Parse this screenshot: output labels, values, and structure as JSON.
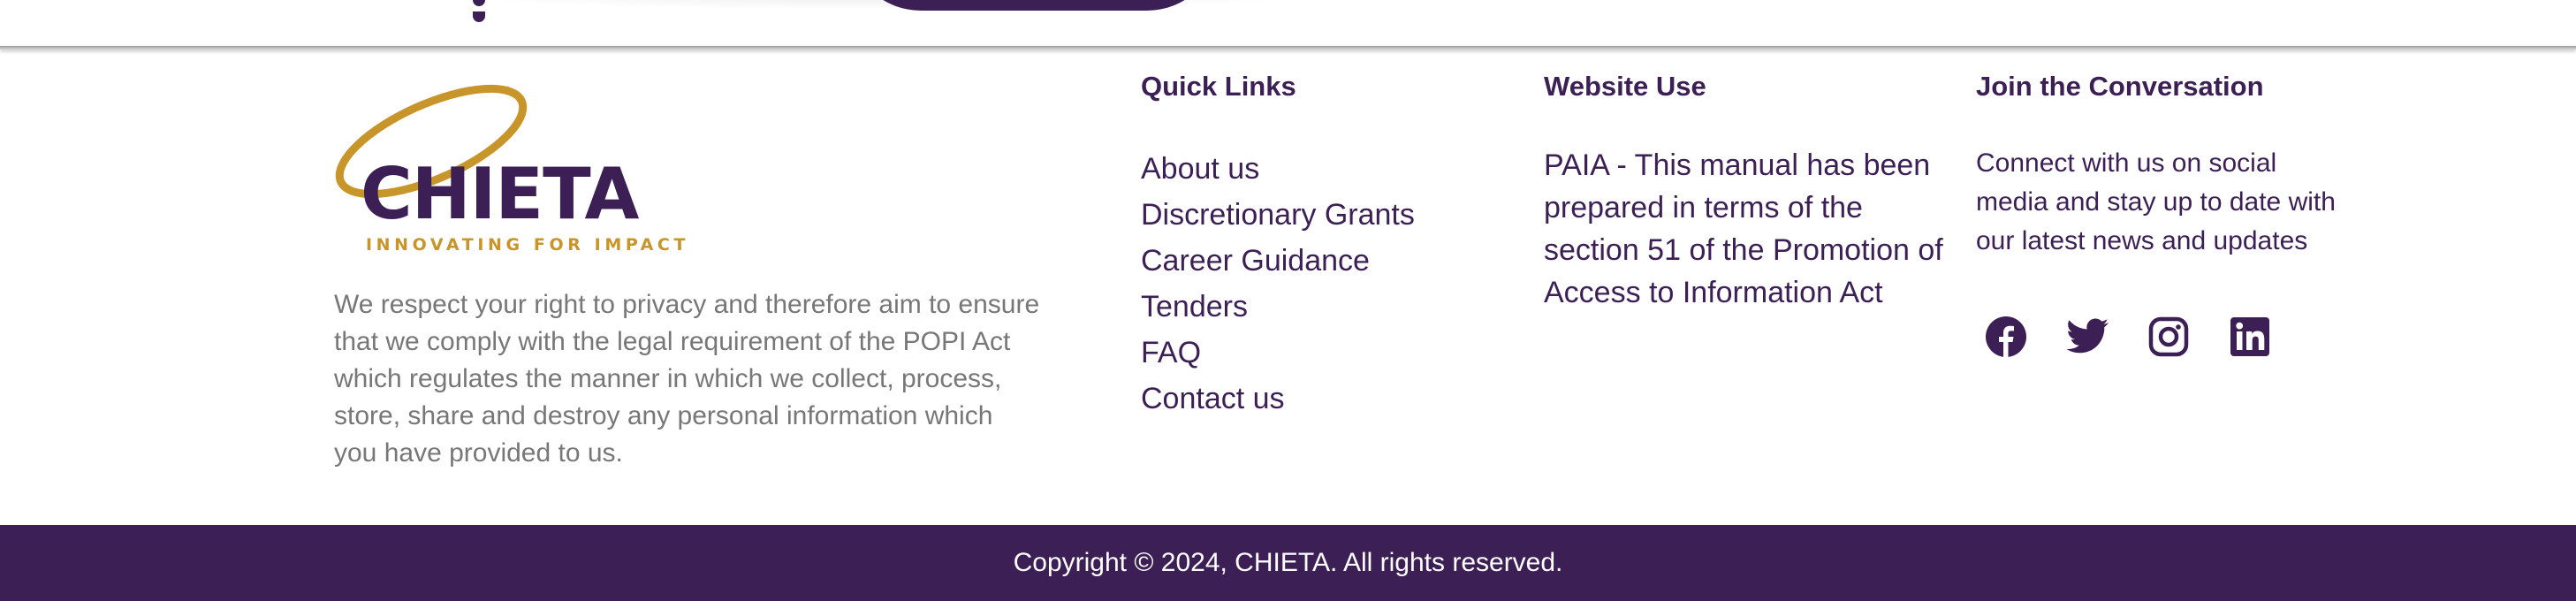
{
  "colors": {
    "brand_purple": "#3b1f55",
    "brand_gold": "#c8952a",
    "muted_text": "#777777",
    "background": "#ffffff"
  },
  "brand": {
    "logo_word": "CHIETA",
    "tagline": "INNOVATING FOR IMPACT",
    "privacy_text": "We respect your right to privacy and therefore aim to ensure that we comply with the legal requirement of the POPI Act which regulates the manner in which we collect, process, store, share and destroy any personal information which you have provided to us."
  },
  "quick_links": {
    "heading": "Quick Links",
    "items": [
      "About us",
      "Discretionary Grants",
      "Career Guidance",
      "Tenders",
      "FAQ",
      "Contact us"
    ]
  },
  "website_use": {
    "heading": "Website Use",
    "text": "PAIA - This manual has been prepared in terms of the section 51 of the Promotion of Access to Information Act"
  },
  "social": {
    "heading": "Join the Conversation",
    "text": "Connect with us on social media and stay up to date with our latest news and updates",
    "icons": [
      "facebook-icon",
      "twitter-icon",
      "instagram-icon",
      "linkedin-icon"
    ]
  },
  "footer": {
    "copyright": "Copyright © 2024, CHIETA. All rights reserved."
  }
}
